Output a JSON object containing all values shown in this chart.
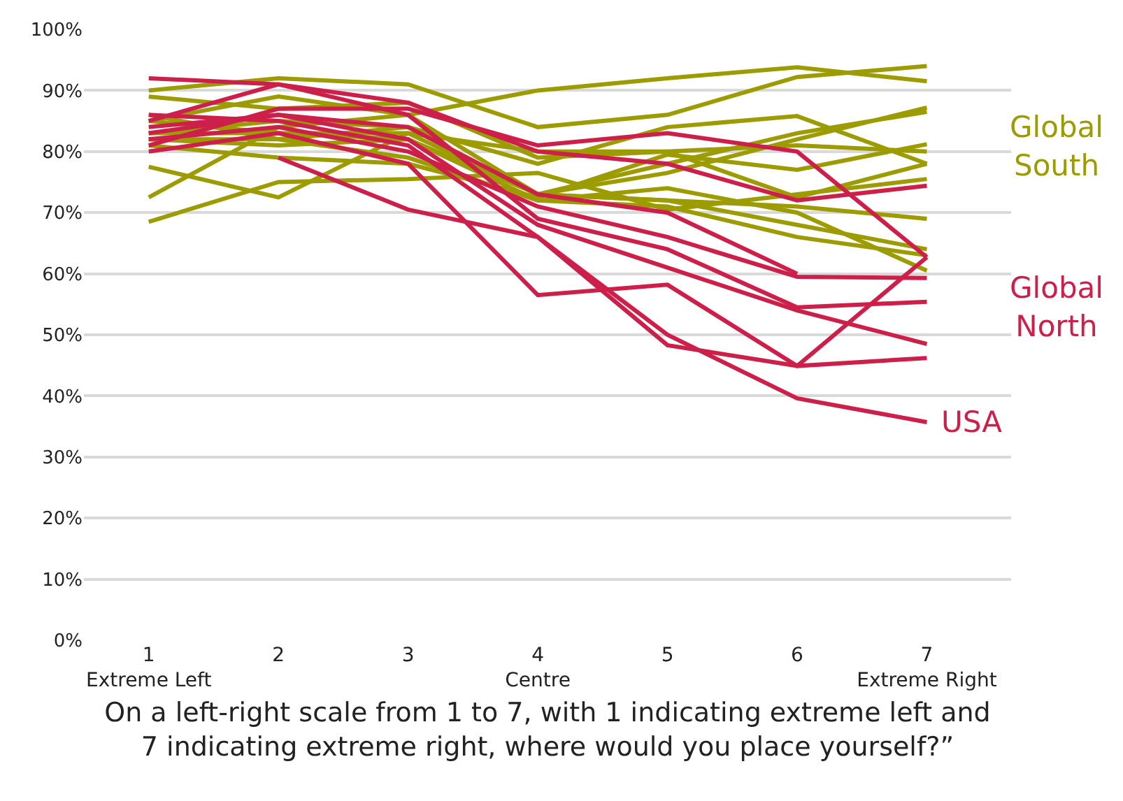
{
  "chart_data": {
    "type": "line",
    "xlabel": "On a left-right scale from 1 to 7, with 1 indicating extreme left and\n7 indicating extreme right, where would you place yourself?”",
    "x": [
      1,
      2,
      3,
      4,
      5,
      6,
      7
    ],
    "xlim": [
      0.5,
      7.65
    ],
    "xticks": [
      {
        "value": 1,
        "label": "1\nExtreme Left"
      },
      2,
      3,
      {
        "value": 4,
        "label": "4\nCentre"
      },
      5,
      6,
      {
        "value": 7,
        "label": "7\nExtreme Right"
      }
    ],
    "ylim": [
      0,
      100
    ],
    "yticks": [
      {
        "value": 0,
        "label": "0%"
      },
      {
        "value": 10,
        "label": "10%"
      },
      {
        "value": 20,
        "label": "20%"
      },
      {
        "value": 30,
        "label": "30%"
      },
      {
        "value": 40,
        "label": "40%"
      },
      {
        "value": 50,
        "label": "50%"
      },
      {
        "value": 60,
        "label": "60%"
      },
      {
        "value": 70,
        "label": "70%"
      },
      {
        "value": 80,
        "label": "80%"
      },
      {
        "value": 90,
        "label": "90%"
      },
      {
        "value": 100,
        "label": "100%"
      }
    ],
    "grid": "y",
    "legend": false,
    "marker": "none",
    "line_style": "solid",
    "series": [
      {
        "color": "#9c9c00",
        "values": [
          85,
          89,
          86,
          90,
          92,
          93.8,
          91.5
        ]
      },
      {
        "color": "#9c9c00",
        "values": [
          90,
          92,
          91,
          84,
          86,
          92.2,
          94
        ]
      },
      {
        "color": "#9c9c00",
        "values": [
          83,
          85,
          84,
          78,
          84,
          85.8,
          78
        ]
      },
      {
        "color": "#9c9c00",
        "values": [
          82,
          81,
          82,
          73,
          76.5,
          82,
          87.2
        ]
      },
      {
        "color": "#9c9c00",
        "values": [
          72.5,
          84,
          86,
          73,
          78,
          83,
          86.5
        ]
      },
      {
        "color": "#9c9c00",
        "values": [
          81,
          79,
          78,
          72.5,
          79.5,
          77,
          81.2
        ]
      },
      {
        "color": "#9c9c00",
        "values": [
          77.5,
          72.5,
          83,
          80,
          80,
          81,
          80
        ]
      },
      {
        "color": "#9c9c00",
        "values": [
          68.5,
          75,
          75.5,
          76.5,
          70.5,
          73,
          75.5
        ]
      },
      {
        "color": "#9c9c00",
        "values": [
          85,
          83,
          83,
          73,
          72,
          71,
          69
        ]
      },
      {
        "color": "#9c9c00",
        "values": [
          82,
          82,
          84,
          73,
          72,
          68,
          64
        ]
      },
      {
        "color": "#9c9c00",
        "values": [
          86,
          82,
          79,
          72,
          71,
          66,
          63
        ]
      },
      {
        "color": "#9c9c00",
        "values": [
          83,
          83,
          82,
          72,
          74,
          70,
          60.5
        ]
      },
      {
        "color": "#9c9c00",
        "values": [
          89,
          87,
          88,
          79,
          80,
          72.5,
          78
        ]
      },
      {
        "color": "#cc1f4a",
        "values": [
          92,
          91,
          88,
          80,
          78,
          72,
          74.4
        ]
      },
      {
        "color": "#cc1f4a",
        "values": [
          81,
          87,
          87,
          81,
          83,
          80,
          62.7
        ]
      },
      {
        "color": "#cc1f4a",
        "values": [
          84,
          86,
          84,
          73,
          70,
          60,
          null
        ]
      },
      {
        "color": "#cc1f4a",
        "values": [
          82,
          84,
          80,
          71,
          66,
          59.5,
          59.3
        ]
      },
      {
        "color": "#cc1f4a",
        "values": [
          85,
          91,
          86,
          69,
          64,
          54.5,
          55.4
        ]
      },
      {
        "color": "#cc1f4a",
        "values": [
          83,
          86,
          82,
          68,
          61,
          54,
          48.5
        ]
      },
      {
        "color": "#cc1f4a",
        "values": [
          86,
          85,
          81,
          66,
          48.3,
          44.9,
          62.7
        ]
      },
      {
        "color": "#cc1f4a",
        "values": [
          80,
          83,
          78,
          56.5,
          58.2,
          44.9,
          46.2
        ]
      },
      {
        "name": "USA",
        "color": "#cc1f4a",
        "values": [
          null,
          79,
          70.5,
          66,
          50,
          39.6,
          35.7
        ]
      }
    ],
    "annotations": [
      "Global\nSouth",
      "Global\nNorth"
    ]
  }
}
